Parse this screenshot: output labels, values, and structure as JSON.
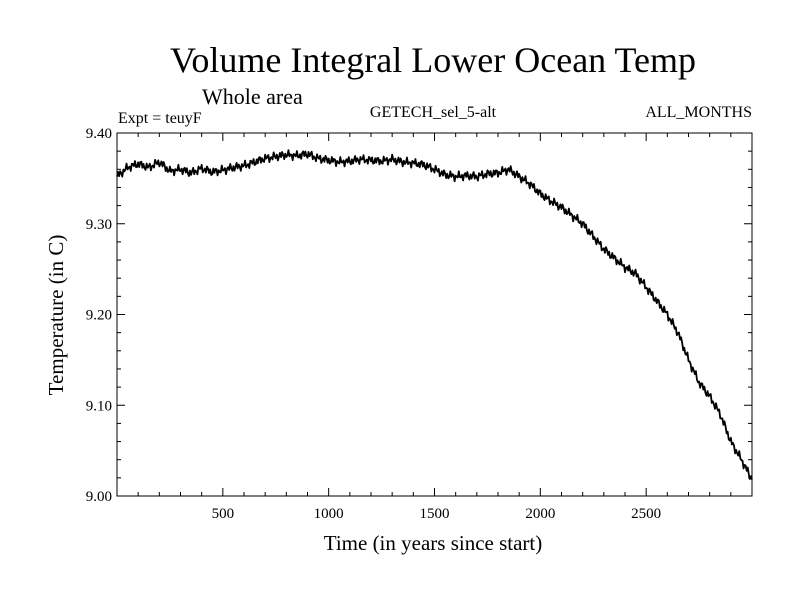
{
  "chart_data": {
    "type": "line",
    "title": "Volume Integral Lower Ocean Temp",
    "subtitle": "Whole area",
    "expt_label": "Expt = teuyF",
    "center_label": "GETECH_sel_5-alt",
    "right_label": "ALL_MONTHS",
    "xlabel": "Time (in years since start)",
    "ylabel": "Temperature (in C)",
    "xlim": [
      0,
      3000
    ],
    "ylim": [
      9.0,
      9.4
    ],
    "x_ticks": [
      500,
      1000,
      1500,
      2000,
      2500
    ],
    "x_tick_labels": [
      "500",
      "1000",
      "1500",
      "2000",
      "2500"
    ],
    "y_ticks": [
      9.0,
      9.1,
      9.2,
      9.3,
      9.4
    ],
    "y_tick_labels": [
      "9.00",
      "9.10",
      "9.20",
      "9.30",
      "9.40"
    ],
    "line_color": "#000000",
    "grid": false,
    "series": [
      {
        "x": [
          0,
          50,
          100,
          150,
          200,
          250,
          300,
          350,
          400,
          450,
          500,
          550,
          600,
          650,
          700,
          750,
          800,
          850,
          900,
          950,
          1000,
          1050,
          1100,
          1150,
          1200,
          1250,
          1300,
          1350,
          1400,
          1450,
          1500,
          1550,
          1600,
          1650,
          1700,
          1750,
          1800,
          1850,
          1900,
          1950,
          2000,
          2050,
          2100,
          2150,
          2200,
          2250,
          2300,
          2350,
          2400,
          2450,
          2500,
          2550,
          2600,
          2650,
          2700,
          2750,
          2800,
          2850,
          2900,
          2950,
          3000
        ],
        "y": [
          9.352,
          9.362,
          9.366,
          9.362,
          9.368,
          9.358,
          9.36,
          9.356,
          9.361,
          9.357,
          9.359,
          9.362,
          9.364,
          9.368,
          9.372,
          9.374,
          9.376,
          9.375,
          9.377,
          9.372,
          9.37,
          9.368,
          9.369,
          9.371,
          9.37,
          9.369,
          9.371,
          9.368,
          9.367,
          9.365,
          9.36,
          9.354,
          9.352,
          9.353,
          9.352,
          9.355,
          9.356,
          9.36,
          9.352,
          9.344,
          9.333,
          9.325,
          9.318,
          9.309,
          9.3,
          9.286,
          9.272,
          9.262,
          9.252,
          9.245,
          9.23,
          9.215,
          9.2,
          9.18,
          9.15,
          9.125,
          9.11,
          9.09,
          9.06,
          9.04,
          9.018
        ]
      }
    ]
  }
}
